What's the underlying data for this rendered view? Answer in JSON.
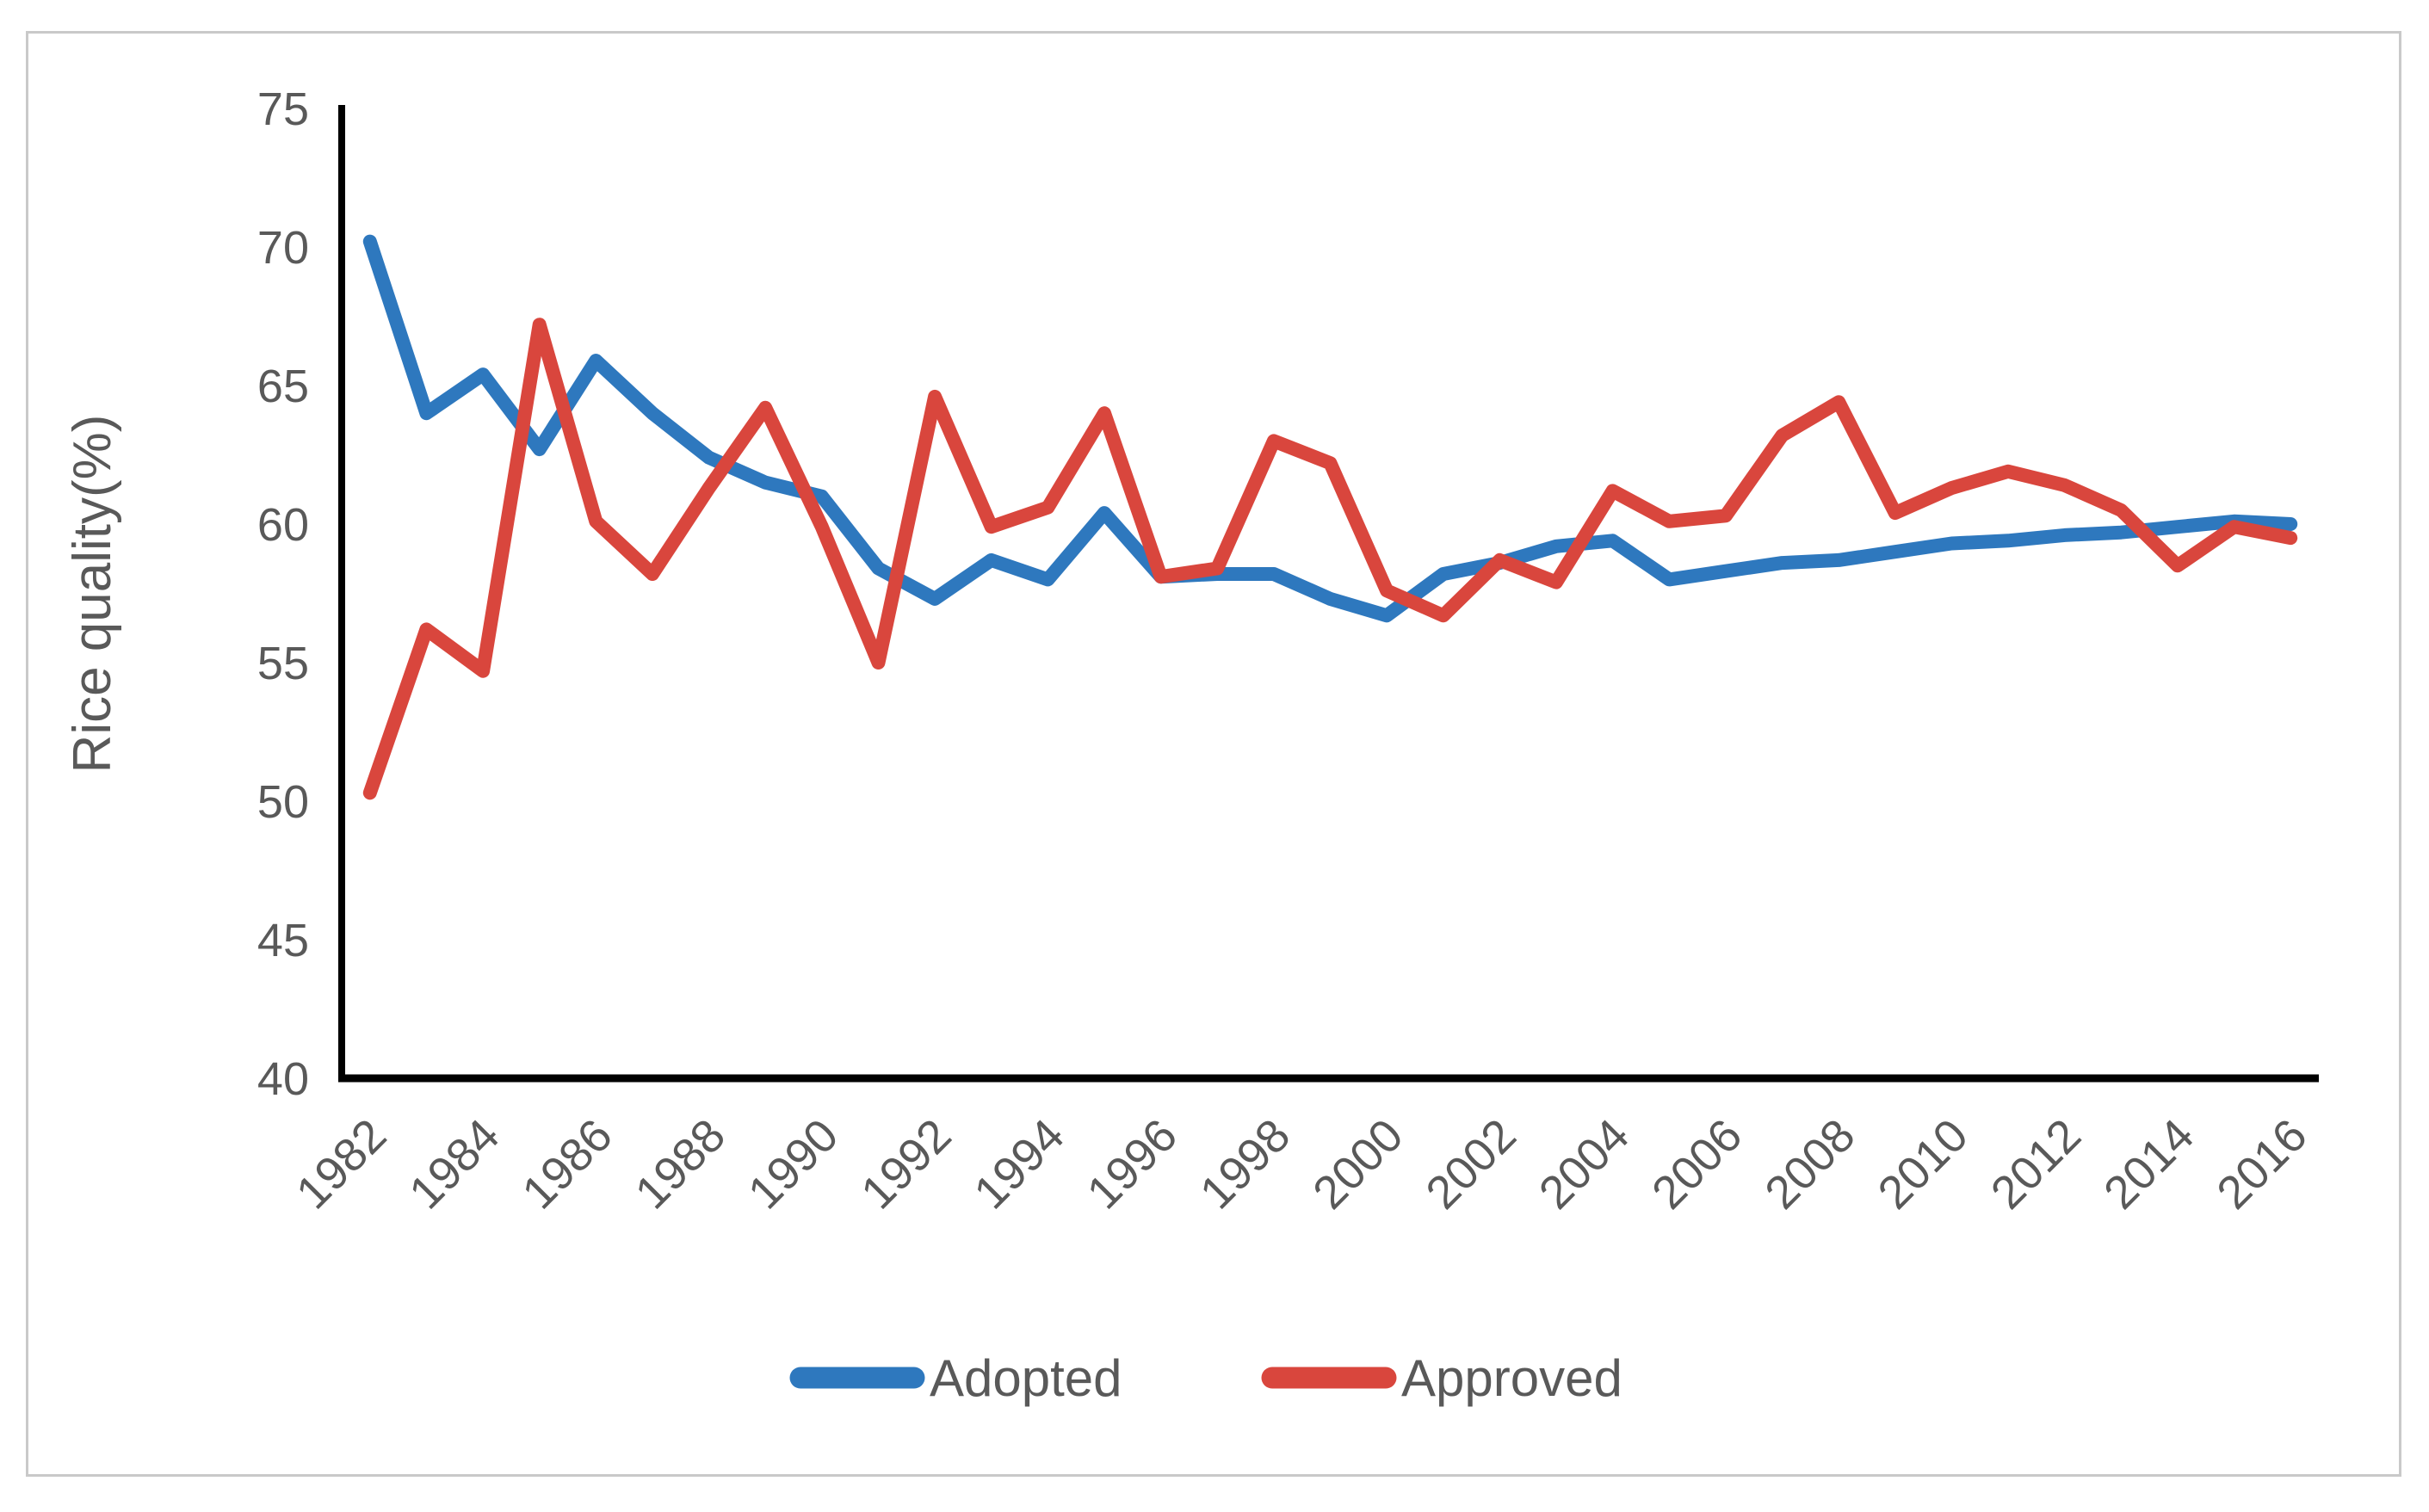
{
  "figure": {
    "ylabel": "Rice quality(%)",
    "background_color": "#ffffff",
    "border_color": "#c9c9c9",
    "axis_color": "#000000",
    "text_color": "#595959"
  },
  "legend": {
    "items": [
      {
        "label": "Adopted",
        "color": "#2e78be"
      },
      {
        "label": "Approved",
        "color": "#d9463d"
      }
    ]
  },
  "chart_data": {
    "type": "line",
    "x": [
      1982,
      1983,
      1984,
      1985,
      1986,
      1987,
      1988,
      1989,
      1990,
      1991,
      1992,
      1993,
      1994,
      1995,
      1996,
      1997,
      1998,
      1999,
      2000,
      2001,
      2002,
      2003,
      2004,
      2005,
      2006,
      2007,
      2008,
      2009,
      2010,
      2011,
      2012,
      2013,
      2014,
      2015,
      2016
    ],
    "series": [
      {
        "name": "Adopted",
        "color": "#2e78be",
        "values": [
          70.2,
          64.0,
          65.4,
          62.7,
          65.9,
          64.0,
          62.4,
          61.5,
          61.0,
          58.4,
          57.3,
          58.7,
          58.0,
          60.4,
          58.1,
          58.2,
          58.2,
          57.3,
          56.7,
          58.2,
          58.6,
          59.2,
          59.4,
          58.0,
          58.3,
          58.6,
          58.7,
          59.0,
          59.3,
          59.4,
          59.6,
          59.7,
          59.9,
          60.1,
          60.0
        ]
      },
      {
        "name": "Approved",
        "color": "#d9463d",
        "values": [
          50.3,
          56.2,
          54.7,
          67.2,
          60.1,
          58.2,
          61.3,
          64.2,
          59.9,
          55.0,
          64.6,
          59.9,
          60.6,
          64.0,
          58.1,
          58.4,
          63.0,
          62.2,
          57.6,
          56.7,
          58.7,
          57.9,
          61.2,
          60.1,
          60.3,
          63.2,
          64.4,
          60.4,
          61.3,
          61.9,
          61.4,
          60.5,
          58.5,
          59.9,
          59.5
        ]
      }
    ],
    "title": "",
    "xlabel": "",
    "ylabel": "Rice quality(%)",
    "ylim": [
      40,
      75
    ],
    "yticks": [
      40,
      45,
      50,
      55,
      60,
      65,
      70,
      75
    ],
    "xtick_labels": [
      "1982",
      "1984",
      "1986",
      "1988",
      "1990",
      "1992",
      "1994",
      "1996",
      "1998",
      "2000",
      "2002",
      "2004",
      "2006",
      "2008",
      "2010",
      "2012",
      "2014",
      "2016"
    ],
    "xtick_every": 2,
    "grid": false,
    "legend_position": "bottom"
  }
}
